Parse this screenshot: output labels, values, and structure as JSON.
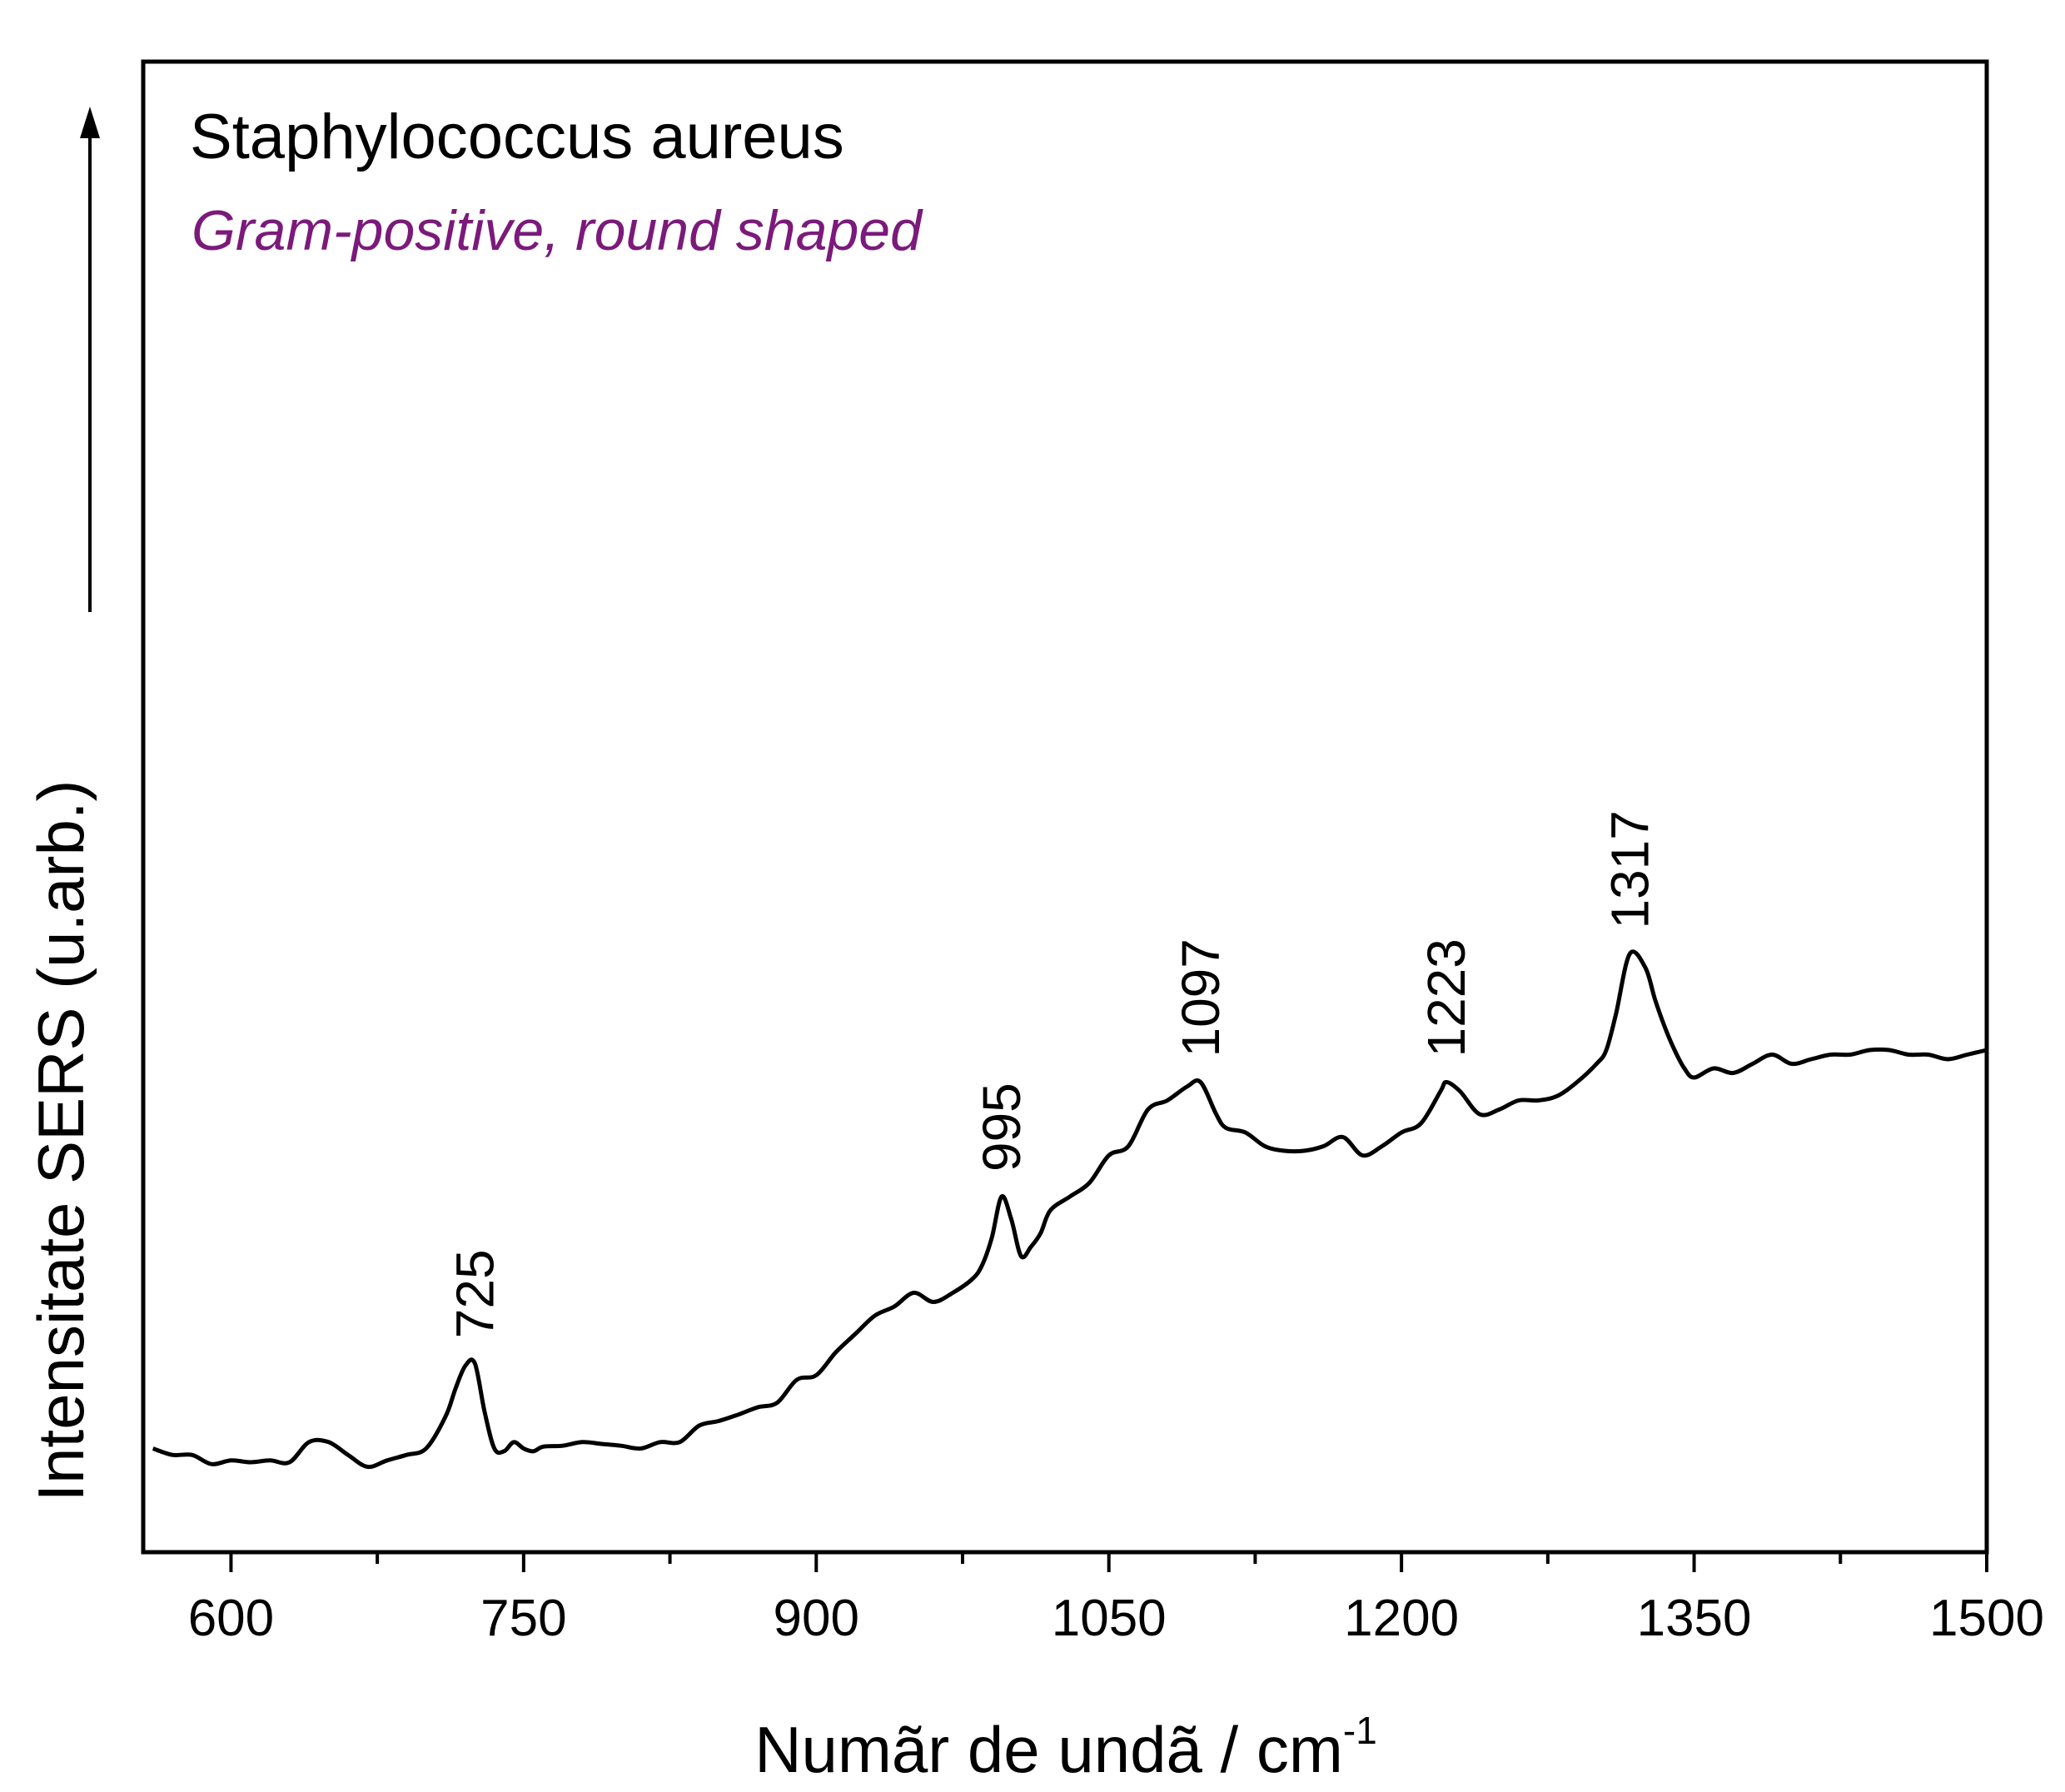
{
  "chart_data": {
    "type": "line",
    "title": "Staphylococcus aureus",
    "subtitle": "Gram-positive, round shaped",
    "subtitle_color": "#7b1a7b",
    "line_color": "#000000",
    "xlabel": "Numãr de undã / cm",
    "xlabel_superscript": "-1",
    "ylabel": "Intensitate SERS (u.arb.)",
    "xlim": [
      555,
      1500
    ],
    "ylim": [
      0,
      1000
    ],
    "x_ticks": [
      600,
      750,
      900,
      1050,
      1200,
      1350,
      1500
    ],
    "x_minor_ticks": [
      675,
      825,
      975,
      1125,
      1275,
      1425
    ],
    "y_tick_labels": false,
    "grid": false,
    "legend": "none",
    "annotation_arrow": "up",
    "peak_labels": [
      {
        "x": 725,
        "y": 148,
        "text": "725"
      },
      {
        "x": 995,
        "y": 330,
        "text": "995"
      },
      {
        "x": 1097,
        "y": 455,
        "text": "1097"
      },
      {
        "x": 1223,
        "y": 455,
        "text": "1223"
      },
      {
        "x": 1317,
        "y": 595,
        "text": "1317"
      }
    ],
    "series": [
      {
        "x": [
          560,
          570,
          580,
          590,
          600,
          610,
          620,
          630,
          640,
          650,
          660,
          670,
          680,
          690,
          700,
          710,
          715,
          720,
          725,
          730,
          735,
          740,
          745,
          750,
          755,
          760,
          770,
          780,
          790,
          800,
          810,
          820,
          830,
          840,
          850,
          860,
          870,
          880,
          890,
          900,
          910,
          920,
          930,
          940,
          950,
          960,
          970,
          980,
          985,
          990,
          995,
          1000,
          1005,
          1010,
          1015,
          1020,
          1030,
          1040,
          1050,
          1060,
          1070,
          1080,
          1090,
          1097,
          1105,
          1110,
          1120,
          1130,
          1140,
          1150,
          1160,
          1170,
          1180,
          1190,
          1200,
          1210,
          1220,
          1223,
          1230,
          1240,
          1250,
          1260,
          1270,
          1280,
          1290,
          1300,
          1305,
          1310,
          1317,
          1325,
          1330,
          1335,
          1340,
          1345,
          1350,
          1360,
          1370,
          1380,
          1390,
          1400,
          1410,
          1420,
          1430,
          1440,
          1450,
          1460,
          1470,
          1480,
          1490,
          1500
        ],
        "y": [
          55,
          48,
          48,
          38,
          42,
          40,
          42,
          40,
          62,
          62,
          48,
          35,
          42,
          48,
          55,
          90,
          120,
          145,
          148,
          95,
          55,
          52,
          62,
          55,
          52,
          57,
          58,
          62,
          60,
          58,
          55,
          62,
          62,
          80,
          85,
          92,
          100,
          105,
          130,
          135,
          160,
          180,
          200,
          210,
          225,
          215,
          225,
          240,
          255,
          285,
          330,
          305,
          265,
          275,
          290,
          315,
          330,
          345,
          375,
          385,
          425,
          435,
          450,
          455,
          420,
          405,
          400,
          385,
          380,
          380,
          385,
          395,
          375,
          385,
          400,
          410,
          445,
          455,
          445,
          420,
          425,
          435,
          435,
          440,
          455,
          475,
          490,
          530,
          595,
          580,
          545,
          515,
          490,
          470,
          460,
          470,
          465,
          475,
          485,
          475,
          480,
          485,
          485,
          490,
          490,
          485,
          485,
          480,
          485,
          490
        ]
      }
    ]
  }
}
